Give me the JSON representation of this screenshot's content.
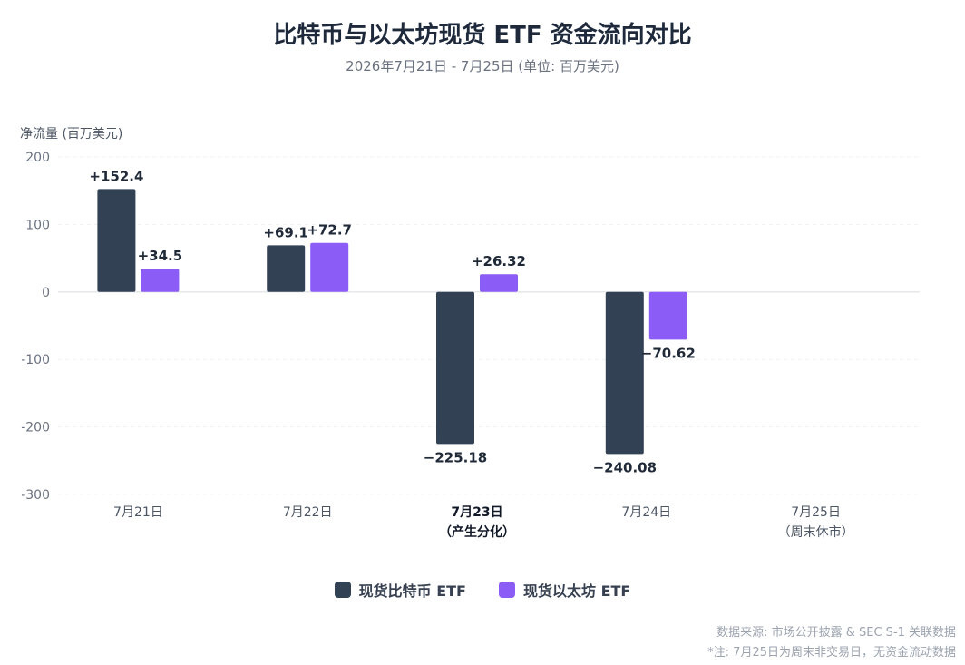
{
  "title": "比特币与以太坊现货 ETF 资金流向对比",
  "subtitle": "2026年7月21日 - 7月25日 (单位: 百万美元)",
  "colors": {
    "btc": "#334155",
    "eth": "#8b5cf6",
    "grid": "#e5e7eb",
    "axis": "#6b7280"
  },
  "chart_data": {
    "type": "bar",
    "ylabel": "净流量 (百万美元)",
    "ylim": [
      -300,
      200
    ],
    "yticks": [
      200,
      100,
      0,
      -100,
      -200,
      -300
    ],
    "grid": true,
    "legend_position": "bottom",
    "categories": [
      {
        "label": "7月21日",
        "note": "",
        "emphasis": false
      },
      {
        "label": "7月22日",
        "note": "",
        "emphasis": false
      },
      {
        "label": "7月23日",
        "note": "（产生分化）",
        "emphasis": true
      },
      {
        "label": "7月24日",
        "note": "",
        "emphasis": false
      },
      {
        "label": "7月25日",
        "note": "（周末休市）",
        "emphasis": false
      }
    ],
    "series": [
      {
        "name": "现货比特币 ETF",
        "color": "#334155",
        "values": [
          152.4,
          69.1,
          -225.18,
          -240.08,
          null
        ],
        "labels": [
          "+152.4",
          "+69.1",
          "−225.18",
          "−240.08",
          ""
        ]
      },
      {
        "name": "现货以太坊 ETF",
        "color": "#8b5cf6",
        "values": [
          34.5,
          72.7,
          26.32,
          -70.62,
          null
        ],
        "labels": [
          "+34.5",
          "+72.7",
          "+26.32",
          "−70.62",
          ""
        ]
      }
    ]
  },
  "footnotes": [
    "数据来源: 市场公开披露 & SEC S-1 关联数据",
    "*注: 7月25日为周末非交易日，无资金流动数据"
  ]
}
